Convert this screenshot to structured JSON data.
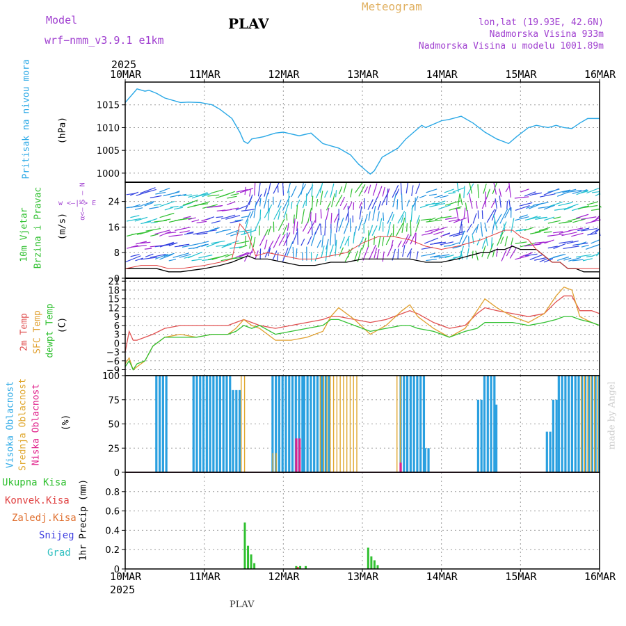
{
  "header": {
    "model_label": "Model",
    "model_name": "wrf−nmm_v3.9.1  e1km",
    "title": "PLAV",
    "meteogram": "Meteogram",
    "lonlat": "lon,lat (19.93E, 42.6N)",
    "altitude": "Nadmorska Visina 933m",
    "model_altitude": "Nadmorska Visina u modelu 1001.89m"
  },
  "footer": {
    "station": "PLAV",
    "watermark": "made by Angel"
  },
  "x_axis": {
    "year_top": "2025",
    "year_bottom": "2025",
    "ticks": [
      "10MAR",
      "11MAR",
      "12MAR",
      "13MAR",
      "14MAR",
      "15MAR",
      "16MAR"
    ]
  },
  "panel_labels": {
    "pressure": {
      "name": "Pritisak na nivou mora",
      "unit": "(hPa)"
    },
    "wind": {
      "name1": "10m Vjetar",
      "name2": "Brzina i Pravac",
      "unit": "(m/s)",
      "compass_top": "w  <—|—>  E",
      "compass_left": "α<— S — N"
    },
    "temp": {
      "t2m": "2m Temp",
      "sfc": "SFC Temp",
      "dewpt": "dewpt Temp",
      "unit": "(C)"
    },
    "cloud": {
      "high": "Visoka Oblacnost",
      "mid": "Srednja Oblacnost",
      "low": "Niska Oblacnost",
      "unit": "(%)"
    },
    "precip": {
      "total": "Ukupna Kisa",
      "conv": "Konvek.Kisa",
      "frz": "Zaledj.Kisa",
      "snow": "Snijeg",
      "grad": "Grad",
      "unit": "1hr Precip (mm)"
    }
  },
  "colors": {
    "pressure": "#2aa8e6",
    "wind_speed": "#000000",
    "gust": "#e04040",
    "t2m": "#e05050",
    "sfc": "#e0a030",
    "dewpt": "#30c030",
    "cloud_high": "#2aa0e0",
    "cloud_mid": "#e0a830",
    "cloud_low": "#e0208a",
    "precip_total": "#30c030",
    "precip_conv": "#e04040"
  },
  "chart_data": [
    {
      "type": "line",
      "name": "pressure",
      "ylabel": "(hPa)",
      "ylim": [
        998,
        1020
      ],
      "yticks": [
        1000,
        1005,
        1010,
        1015
      ],
      "x": [
        0,
        0.1,
        0.15,
        0.25,
        0.3,
        0.4,
        0.5,
        0.7,
        0.8,
        0.95,
        1.1,
        1.2,
        1.35,
        1.45,
        1.5,
        1.55,
        1.6,
        1.75,
        1.9,
        2.0,
        2.2,
        2.35,
        2.5,
        2.7,
        2.85,
        2.95,
        3.05,
        3.1,
        3.15,
        3.25,
        3.45,
        3.55,
        3.65,
        3.75,
        3.8,
        4.0,
        4.1,
        4.25,
        4.4,
        4.55,
        4.7,
        4.85,
        4.95,
        5.1,
        5.2,
        5.35,
        5.45,
        5.55,
        5.65,
        5.75,
        5.85,
        6.0
      ],
      "series": [
        {
          "values": [
            1015.5,
            1017.5,
            1018.5,
            1018,
            1018.2,
            1017.5,
            1016.5,
            1015.5,
            1015.6,
            1015.5,
            1015,
            1014,
            1012,
            1009,
            1007,
            1006.5,
            1007.5,
            1008,
            1008.8,
            1009,
            1008.2,
            1008.8,
            1006.5,
            1005.5,
            1004,
            1002,
            1000.5,
            999.8,
            1000.5,
            1003.5,
            1005.5,
            1007.5,
            1009,
            1010.5,
            1010,
            1011.5,
            1011.8,
            1012.5,
            1011,
            1009,
            1007.5,
            1006.5,
            1008,
            1010,
            1010.5,
            1010,
            1010.5,
            1010,
            1009.8,
            1011,
            1012,
            1012
          ]
        }
      ]
    },
    {
      "type": "line",
      "name": "wind",
      "ylabel": "(m/s)",
      "ylim": [
        0,
        30
      ],
      "yticks": [
        0,
        8,
        16,
        24
      ],
      "x": [
        0,
        0.2,
        0.4,
        0.55,
        0.7,
        1.0,
        1.2,
        1.35,
        1.45,
        1.55,
        1.65,
        1.8,
        2.0,
        2.2,
        2.4,
        2.6,
        2.8,
        3.0,
        3.2,
        3.4,
        3.6,
        3.8,
        4.0,
        4.2,
        4.35,
        4.5,
        4.6,
        4.7,
        4.8,
        4.9,
        5.0,
        5.1,
        5.2,
        5.3,
        5.4,
        5.5,
        5.55,
        5.6,
        5.7,
        5.8,
        6.0
      ],
      "series": [
        {
          "name": "speed",
          "values": [
            3,
            3,
            3,
            2,
            2,
            3,
            4,
            5,
            6,
            7,
            6,
            6,
            5,
            4,
            4,
            5,
            5,
            6,
            6,
            6,
            6,
            5,
            5,
            6,
            7,
            8,
            8,
            9,
            9,
            10,
            9,
            9,
            9,
            7,
            5,
            5,
            4,
            3,
            3,
            2,
            2
          ]
        },
        {
          "name": "gust",
          "values": [
            3,
            4,
            4,
            3,
            3,
            4,
            5,
            6,
            17,
            14,
            7,
            8,
            7,
            6,
            6,
            7,
            8,
            11,
            13,
            13,
            12,
            10,
            9,
            10,
            11,
            12,
            13,
            14,
            15,
            15,
            13,
            12,
            9,
            7,
            5,
            5,
            4,
            3,
            3,
            3,
            3
          ]
        }
      ]
    },
    {
      "type": "line",
      "name": "temperature",
      "ylabel": "(C)",
      "ylim": [
        -11,
        22
      ],
      "yticks": [
        -9,
        -6,
        -3,
        0,
        3,
        6,
        9,
        12,
        15,
        18,
        21
      ],
      "x": [
        0,
        0.05,
        0.1,
        0.15,
        0.25,
        0.35,
        0.5,
        0.7,
        0.9,
        1.1,
        1.3,
        1.4,
        1.5,
        1.6,
        1.7,
        1.9,
        2.1,
        2.3,
        2.5,
        2.6,
        2.7,
        2.9,
        3.1,
        3.3,
        3.5,
        3.6,
        3.7,
        3.9,
        4.1,
        4.3,
        4.45,
        4.55,
        4.7,
        4.9,
        5.1,
        5.3,
        5.45,
        5.55,
        5.65,
        5.75,
        5.9,
        6.0
      ],
      "series": [
        {
          "name": "2m",
          "values": [
            -3,
            4,
            1,
            1,
            2,
            3,
            5,
            6,
            6,
            6,
            6,
            7,
            8,
            7,
            6,
            5,
            6,
            7,
            8,
            9,
            9,
            8,
            7,
            8,
            10,
            11,
            10,
            7,
            5,
            6,
            10,
            12,
            11,
            10,
            9,
            10,
            14,
            16,
            16,
            11,
            11,
            10
          ]
        },
        {
          "name": "sfc",
          "values": [
            -7,
            -5,
            -9,
            -8,
            -6,
            -1,
            2,
            3,
            2,
            3,
            3,
            5,
            8,
            6,
            5,
            1,
            1,
            2,
            4,
            9,
            12,
            8,
            3,
            6,
            11,
            13,
            9,
            5,
            2,
            5,
            11,
            15,
            12,
            9,
            7,
            10,
            16,
            19,
            18,
            9,
            7,
            6
          ]
        },
        {
          "name": "dewpt",
          "values": [
            -8,
            -6,
            -9,
            -7,
            -6,
            -1,
            2,
            2,
            2,
            3,
            3,
            4,
            6,
            5,
            6,
            3,
            4,
            5,
            6,
            8,
            8,
            6,
            4,
            5,
            6,
            6,
            5,
            4,
            2,
            4,
            5,
            7,
            7,
            7,
            6,
            7,
            8,
            9,
            9,
            8,
            7,
            6
          ]
        }
      ]
    },
    {
      "type": "bar",
      "name": "cloud",
      "ylabel": "(%)",
      "ylim": [
        0,
        100
      ],
      "yticks": [
        0,
        25,
        50,
        75,
        100
      ],
      "series": [
        {
          "name": "high",
          "blocks": [
            [
              0.38,
              0.52,
              100
            ],
            [
              0.85,
              1.35,
              100
            ],
            [
              1.35,
              1.45,
              85
            ],
            [
              1.85,
              2.25,
              100
            ],
            [
              2.25,
              2.48,
              100
            ],
            [
              2.48,
              2.6,
              100
            ],
            [
              3.47,
              3.78,
              100
            ],
            [
              3.78,
              3.85,
              25
            ],
            [
              4.45,
              4.5,
              75
            ],
            [
              4.53,
              4.68,
              100
            ],
            [
              4.68,
              4.7,
              70
            ],
            [
              5.32,
              5.4,
              42
            ],
            [
              5.4,
              5.47,
              75
            ],
            [
              5.47,
              5.85,
              100
            ],
            [
              5.85,
              5.98,
              100
            ]
          ]
        },
        {
          "name": "mid",
          "blocks": [
            [
              1.45,
              1.5,
              100
            ],
            [
              1.85,
              1.9,
              20
            ],
            [
              2.45,
              2.95,
              100
            ],
            [
              3.42,
              3.47,
              100
            ],
            [
              5.75,
              5.98,
              100
            ]
          ]
        },
        {
          "name": "low",
          "blocks": [
            [
              2.15,
              2.22,
              35
            ],
            [
              3.47,
              3.5,
              10
            ]
          ]
        }
      ]
    },
    {
      "type": "bar",
      "name": "precip",
      "ylabel": "1hr Precip (mm)",
      "ylim": [
        0,
        1.0
      ],
      "yticks": [
        0,
        0.2,
        0.4,
        0.6,
        0.8
      ],
      "series": [
        {
          "name": "total",
          "bars": [
            [
              1.5,
              0.48
            ],
            [
              1.54,
              0.24
            ],
            [
              1.58,
              0.15
            ],
            [
              1.62,
              0.06
            ],
            [
              2.15,
              0.03
            ],
            [
              2.2,
              0.03
            ],
            [
              2.27,
              0.03
            ],
            [
              3.06,
              0.22
            ],
            [
              3.1,
              0.13
            ],
            [
              3.14,
              0.09
            ],
            [
              3.18,
              0.04
            ]
          ]
        },
        {
          "name": "conv",
          "bars": [
            [
              2.17,
              0.02
            ]
          ]
        }
      ]
    }
  ]
}
